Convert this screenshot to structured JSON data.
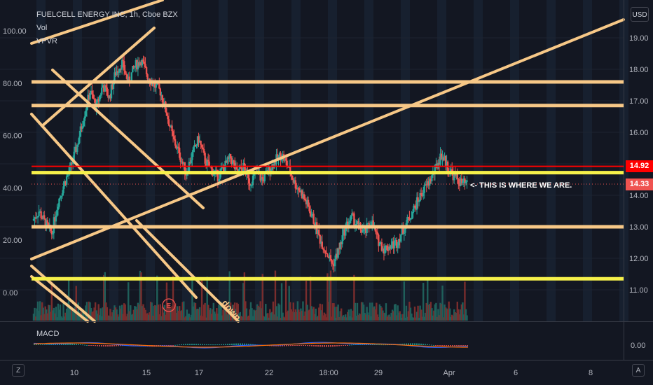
{
  "legend": {
    "symbol": "FUELCELL ENERGY INC, 1h, Cboe BZX",
    "vol": "Vol",
    "vpvr": "VPVR"
  },
  "currency_label": "USD",
  "macd_label": "MACD",
  "annotation": "<- THIS IS WHERE WE ARE.",
  "annotation_partial": "down",
  "event_marker": "E",
  "price_tags": {
    "upper": "14.92",
    "current": "14.33"
  },
  "corner_buttons": {
    "left": "Z",
    "right": "A"
  },
  "colors": {
    "background": "#131722",
    "up": "#26a69a",
    "down": "#ef5350",
    "trendline": "#f7c887",
    "highlight_line": "#f6f14a",
    "resistance_line": "#ff0000",
    "vpvr_up": "#2a83c6",
    "vpvr_down": "#b39524"
  },
  "chart_data": {
    "type": "candlestick",
    "title": "FUELCELL ENERGY INC, 1h, Cboe BZX",
    "x_tick_labels": [
      "10",
      "15",
      "17",
      "22",
      "18:00",
      "29",
      "Apr",
      "6",
      "8"
    ],
    "left_axis": {
      "labels": [
        "100.00",
        "80.00",
        "60.00",
        "40.00",
        "20.00",
        "0.00"
      ],
      "values": [
        100,
        80,
        60,
        40,
        20,
        0
      ],
      "range": [
        -4,
        108
      ]
    },
    "right_axis": {
      "labels": [
        "19.00",
        "18.00",
        "17.00",
        "16.00",
        "15.00",
        "14.00",
        "13.00",
        "12.00",
        "11.00"
      ],
      "values": [
        19,
        18,
        17,
        16,
        15,
        14,
        13,
        12,
        11
      ],
      "unit": "USD",
      "range": [
        10.88,
        20.06
      ]
    },
    "macd_axis": {
      "labels": [
        "0.00"
      ],
      "values": [
        0
      ]
    },
    "horizontal_lines": [
      {
        "price": 17.6,
        "style": "trendline"
      },
      {
        "price": 16.85,
        "style": "trendline"
      },
      {
        "price": 14.92,
        "style": "resistance"
      },
      {
        "price": 14.72,
        "style": "highlight"
      },
      {
        "price": 13.0,
        "style": "trendline"
      },
      {
        "price": 11.35,
        "style": "highlight"
      }
    ],
    "current_price": 14.33,
    "price_series_close": [
      13.2,
      13.5,
      13.1,
      12.8,
      13.8,
      14.4,
      14.9,
      15.6,
      16.5,
      17.3,
      16.8,
      17.5,
      17.1,
      17.9,
      18.2,
      17.6,
      18.1,
      18.3,
      17.8,
      17.5,
      17.3,
      16.6,
      15.8,
      15.3,
      14.7,
      15.3,
      15.8,
      15.1,
      14.8,
      14.6,
      14.9,
      15.2,
      14.7,
      14.9,
      14.4,
      14.7,
      14.5,
      14.8,
      15.1,
      15.3,
      14.9,
      14.4,
      14.1,
      13.7,
      13.2,
      12.6,
      12.2,
      11.8,
      12.3,
      13.0,
      13.3,
      13.0,
      12.8,
      13.2,
      12.6,
      12.3,
      12.4,
      12.5,
      12.9,
      13.3,
      13.7,
      14.1,
      14.4,
      14.8,
      15.3,
      14.9,
      14.6,
      14.4,
      14.33
    ],
    "volume_profile": [
      {
        "price": 18.5,
        "up": 20,
        "down": 6
      },
      {
        "price": 18.3,
        "up": 28,
        "down": 14
      },
      {
        "price": 18.0,
        "up": 36,
        "down": 30
      },
      {
        "price": 17.7,
        "up": 40,
        "down": 55
      },
      {
        "price": 17.45,
        "up": 42,
        "down": 50
      },
      {
        "price": 17.2,
        "up": 46,
        "down": 48
      },
      {
        "price": 16.95,
        "up": 40,
        "down": 30
      },
      {
        "price": 16.7,
        "up": 40,
        "down": 26
      },
      {
        "price": 16.45,
        "up": 36,
        "down": 20
      },
      {
        "price": 16.2,
        "up": 32,
        "down": 24
      },
      {
        "price": 15.95,
        "up": 40,
        "down": 20
      },
      {
        "price": 15.7,
        "up": 46,
        "down": 16
      },
      {
        "price": 15.45,
        "up": 80,
        "down": 8
      },
      {
        "price": 15.2,
        "up": 80,
        "down": 92
      },
      {
        "price": 14.95,
        "up": 80,
        "down": 104
      },
      {
        "price": 14.7,
        "up": 64,
        "down": 60
      },
      {
        "price": 14.45,
        "up": 62,
        "down": 24
      },
      {
        "price": 14.2,
        "up": 60,
        "down": 26
      },
      {
        "price": 13.95,
        "up": 40,
        "down": 38
      },
      {
        "price": 13.7,
        "up": 42,
        "down": 34
      },
      {
        "price": 13.45,
        "up": 26,
        "down": 46
      },
      {
        "price": 13.2,
        "up": 68,
        "down": 88
      },
      {
        "price": 12.95,
        "up": 62,
        "down": 82
      },
      {
        "price": 12.7,
        "up": 60,
        "down": 88
      },
      {
        "price": 12.45,
        "up": 64,
        "down": 82
      },
      {
        "price": 12.2,
        "up": 44,
        "down": 26
      },
      {
        "price": 11.95,
        "up": 6,
        "down": 2
      }
    ]
  }
}
